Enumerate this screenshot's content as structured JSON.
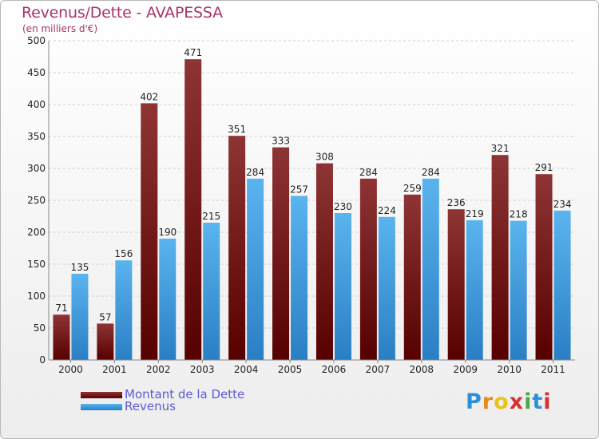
{
  "chart_data": {
    "type": "bar",
    "title": "Revenus/Dette - AVAPESSA",
    "subtitle": "(en milliers d'€)",
    "categories": [
      "2000",
      "2001",
      "2002",
      "2003",
      "2004",
      "2005",
      "2006",
      "2007",
      "2008",
      "2009",
      "2010",
      "2011"
    ],
    "series": [
      {
        "name": "Montant de la Dette",
        "color": "#7a1818",
        "values": [
          71,
          57,
          402,
          471,
          351,
          333,
          308,
          284,
          259,
          236,
          321,
          291
        ]
      },
      {
        "name": "Revenus",
        "color": "#3a9ee0",
        "values": [
          135,
          156,
          190,
          215,
          284,
          257,
          230,
          224,
          284,
          219,
          218,
          234
        ]
      }
    ],
    "ylim": [
      0,
      500
    ],
    "yticks": [
      0,
      50,
      100,
      150,
      200,
      250,
      300,
      350,
      400,
      450,
      500
    ],
    "grid": true,
    "legend_position": "bottom-left"
  },
  "brand": {
    "letters": [
      "P",
      "r",
      "o",
      "x",
      "i",
      "t",
      "i"
    ],
    "colors": [
      "#2e8fd8",
      "#e88a1a",
      "#e8c21a",
      "#d83030",
      "#4aa84a",
      "#2e8fd8",
      "#d83030"
    ]
  }
}
